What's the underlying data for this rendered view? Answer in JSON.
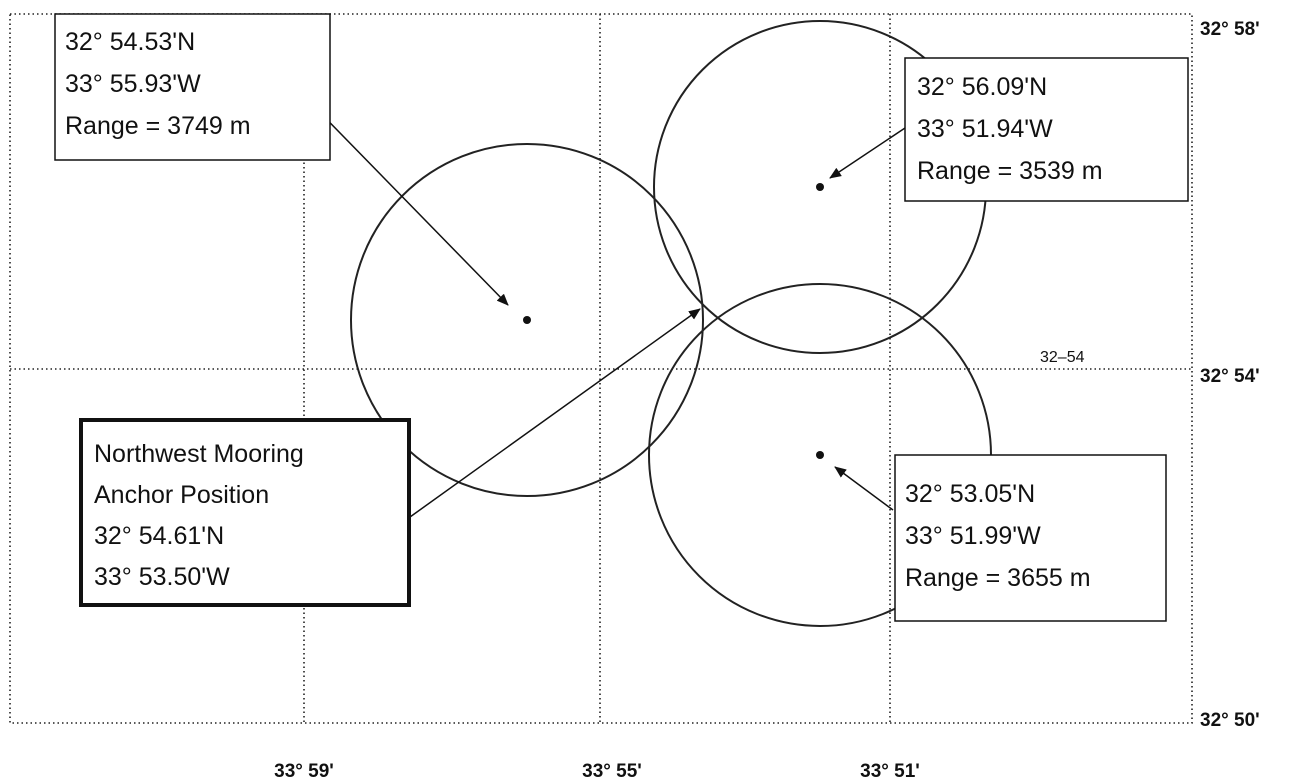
{
  "boxes": [
    {
      "lines": [
        "32° 54.53'N",
        "33° 55.93'W",
        "Range = 3749 m"
      ]
    },
    {
      "lines": [
        "32° 56.09'N",
        "33° 51.94'W",
        "Range = 3539 m"
      ]
    },
    {
      "lines": [
        "Northwest Mooring",
        "Anchor Position",
        "32° 54.61'N",
        "33° 53.50'W"
      ]
    },
    {
      "lines": [
        "32° 53.05'N",
        "33° 51.99'W",
        "Range = 3655 m"
      ]
    }
  ],
  "lat_labels": [
    "32° 58'",
    "32° 54'",
    "32° 50'"
  ],
  "lon_labels": [
    "33° 59'",
    "33° 55'",
    "33° 51'"
  ],
  "grid_note": "32–54"
}
